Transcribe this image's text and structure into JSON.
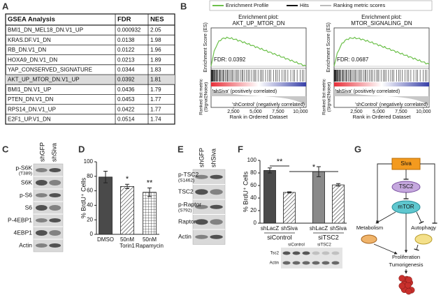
{
  "panels": {
    "a": {
      "label": "A",
      "header": [
        "GSEA Analysis",
        "FDR",
        "NES"
      ],
      "rows": [
        [
          "BMI1_DN_MEL18_DN.V1_UP",
          "0.000932",
          "2.05"
        ],
        [
          "KRAS.DF.V1_DN",
          "0.0138",
          "1.98"
        ],
        [
          "RB_DN.V1_DN",
          "0.0122",
          "1.96"
        ],
        [
          "HOXA9_DN.V1_DN",
          "0.0213",
          "1.89"
        ],
        [
          "YAP_CONSERVED_SIGNATURE",
          "0.0344",
          "1.83"
        ],
        [
          "AKT_UP_MTOR_DN.V1_UP",
          "0.0392",
          "1.81"
        ],
        [
          "BMI1_DN.V1_UP",
          "0.0436",
          "1.79"
        ],
        [
          "PTEN_DN.V1_DN",
          "0.0453",
          "1.77"
        ],
        [
          "RPS14_DN.V1_UP",
          "0.0422",
          "1.77"
        ],
        [
          "E2F1_UP.V1_DN",
          "0.0514",
          "1.74"
        ]
      ],
      "highlight_row": 5
    },
    "b": {
      "label": "B",
      "legend": [
        "Enrichment Profile",
        "Hits",
        "Ranking metric scores"
      ],
      "plots": [
        {
          "title": [
            "Enrichment plot:",
            "AKT_UP_MTOR_DN"
          ],
          "fdr": "FDR: 0.0392"
        },
        {
          "title": [
            "Enrichment plot:",
            "MTOR_SIGNALING_DN"
          ],
          "fdr": "FDR: 0.0687"
        }
      ],
      "es_axis": "Enrichment Score (ES)",
      "metric_axis": [
        "Ranked list metric",
        "(Signal2Noise)"
      ],
      "pos_label": "'shSiva' (positively correlated)",
      "neg_label": "'shControl' (negatively correlated)",
      "x_axis": "Rank in Ordered Dataset",
      "xticks": [
        "2,500",
        "5,000",
        "7,500",
        "10,000"
      ]
    },
    "c": {
      "label": "C",
      "lanes": [
        "shGFP",
        "shSiva"
      ],
      "rows": [
        [
          "p-S6K",
          "(T389)"
        ],
        [
          "S6K"
        ],
        [
          "p-S6"
        ],
        [
          "S6"
        ],
        [
          "P-4EBP1"
        ],
        [
          "4EBP1"
        ],
        [
          "Actin"
        ]
      ]
    },
    "d": {
      "label": "D",
      "y_axis": "% BrdU⁺ Cells",
      "categories": [
        [
          "DMSO"
        ],
        [
          "50nM",
          "Torin1"
        ],
        [
          "50nM",
          "Rapamycin"
        ]
      ],
      "values": [
        79,
        66,
        58
      ],
      "errors": [
        8,
        3,
        6
      ],
      "significance": [
        null,
        "*",
        "**"
      ],
      "fills": [
        "solid",
        "diagonal",
        "grid"
      ],
      "ylim": [
        0,
        100
      ],
      "yticks": [
        0,
        20,
        40,
        60,
        80,
        100
      ]
    },
    "e": {
      "label": "E",
      "lanes": [
        "shGFP",
        "shSiva"
      ],
      "rows": [
        [
          "p-TSC2",
          "(S1462)"
        ],
        [
          "TSC2"
        ],
        [
          "p-Raptor",
          "(S792)"
        ],
        [
          "Raptor"
        ],
        [
          "Actin"
        ]
      ]
    },
    "f": {
      "label": "F",
      "y_axis": "% BrdU⁺ Cells",
      "categories": [
        "shLacZ",
        "shSiva",
        "shLacZ",
        "shSiva"
      ],
      "groups": [
        "siControl",
        "siTSC2"
      ],
      "values": [
        84,
        49,
        82,
        61
      ],
      "errors": [
        4,
        1,
        8,
        2
      ],
      "fills": [
        "#4a4a4a",
        "diagonal",
        "#8a8a8a",
        "diagonal"
      ],
      "significance": [
        "**",
        "*"
      ],
      "ylim": [
        0,
        100
      ],
      "yticks": [
        0,
        20,
        40,
        60,
        80,
        100
      ],
      "inset": {
        "lanes": [
          "siControl",
          "siTSC2"
        ],
        "rows": [
          "Tsc2",
          "Actin"
        ]
      }
    },
    "g": {
      "label": "G",
      "siva": "Siva",
      "tsc2": "TSC2",
      "mtor": "mTOR",
      "metabolism": "Metabolism",
      "autophagy": "Autophagy",
      "outcome": [
        "Proliferation",
        "Tumorigenesis"
      ]
    }
  }
}
